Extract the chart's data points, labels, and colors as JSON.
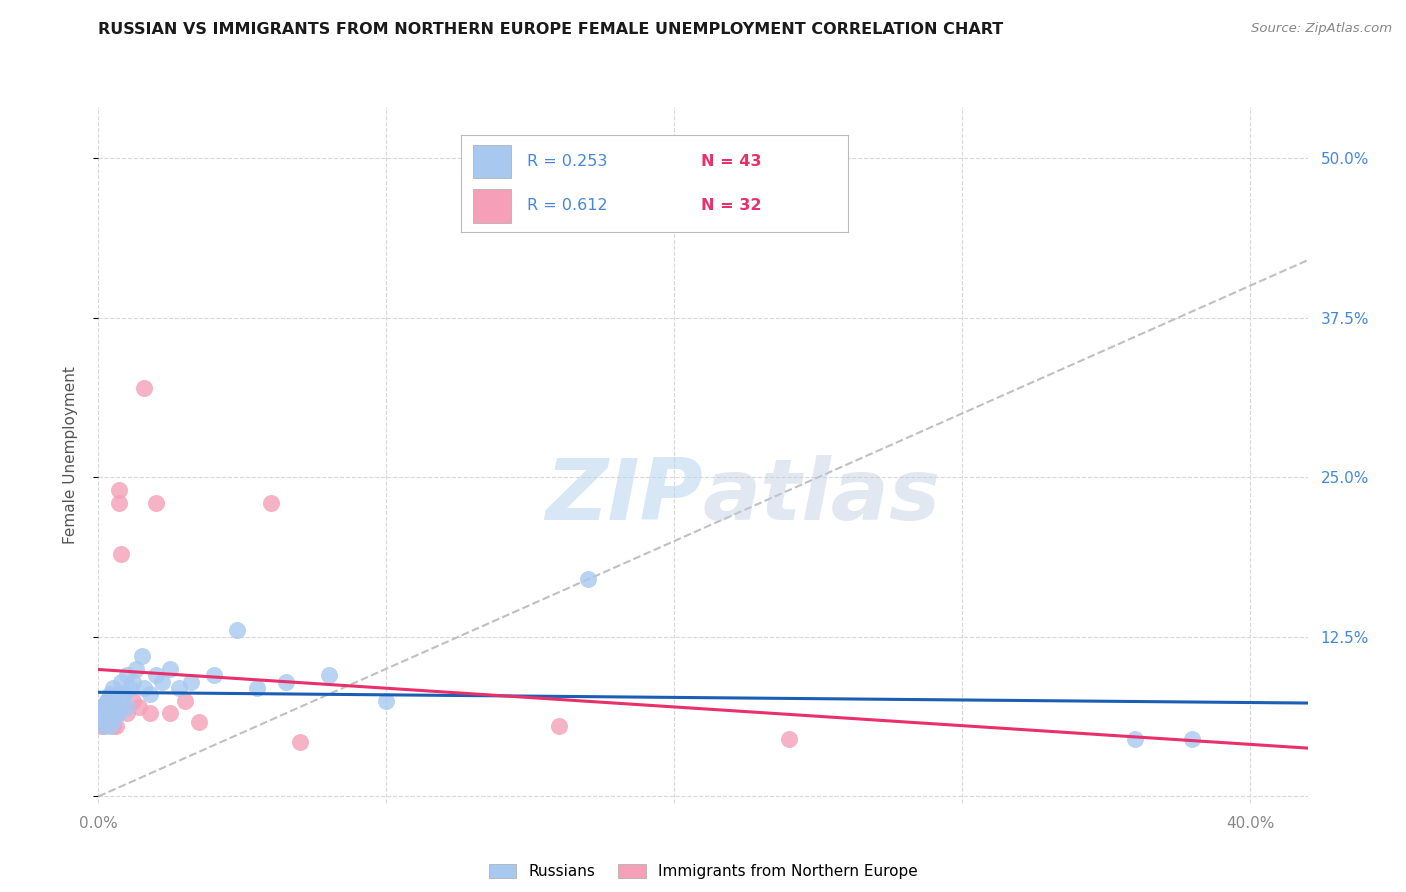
{
  "title": "RUSSIAN VS IMMIGRANTS FROM NORTHERN EUROPE FEMALE UNEMPLOYMENT CORRELATION CHART",
  "source": "Source: ZipAtlas.com",
  "ylabel": "Female Unemployment",
  "xlim": [
    0.0,
    0.42
  ],
  "ylim": [
    -0.005,
    0.54
  ],
  "yticks": [
    0.0,
    0.125,
    0.25,
    0.375,
    0.5
  ],
  "ytick_labels": [
    "",
    "12.5%",
    "25.0%",
    "37.5%",
    "50.0%"
  ],
  "xticks": [
    0.0,
    0.1,
    0.2,
    0.3,
    0.4
  ],
  "xtick_labels": [
    "0.0%",
    "",
    "",
    "",
    "40.0%"
  ],
  "background_color": "#ffffff",
  "grid_color": "#d8d8d8",
  "russian_color": "#a8c8f0",
  "immigrant_color": "#f5a0b8",
  "russian_line_color": "#1a5fb4",
  "immigrant_line_color": "#e8306a",
  "diagonal_color": "#c0c0c0",
  "legend_r1": "R = 0.253",
  "legend_n1": "N = 43",
  "legend_r2": "R = 0.612",
  "legend_n2": "N = 32",
  "r_color": "#4488dd",
  "n_color": "#e8306a",
  "watermark_zip": "ZIP",
  "watermark_atlas": "atlas",
  "russians_label": "Russians",
  "immigrants_label": "Immigrants from Northern Europe",
  "russians_x": [
    0.001,
    0.001,
    0.002,
    0.002,
    0.002,
    0.003,
    0.003,
    0.003,
    0.004,
    0.004,
    0.004,
    0.005,
    0.005,
    0.005,
    0.006,
    0.006,
    0.007,
    0.007,
    0.008,
    0.008,
    0.009,
    0.01,
    0.01,
    0.011,
    0.012,
    0.013,
    0.015,
    0.016,
    0.018,
    0.02,
    0.022,
    0.025,
    0.028,
    0.032,
    0.04,
    0.048,
    0.055,
    0.065,
    0.08,
    0.1,
    0.17,
    0.36,
    0.38
  ],
  "russians_y": [
    0.06,
    0.07,
    0.055,
    0.065,
    0.07,
    0.06,
    0.065,
    0.075,
    0.055,
    0.07,
    0.08,
    0.06,
    0.075,
    0.085,
    0.065,
    0.07,
    0.065,
    0.08,
    0.075,
    0.09,
    0.08,
    0.07,
    0.095,
    0.085,
    0.09,
    0.1,
    0.11,
    0.085,
    0.08,
    0.095,
    0.09,
    0.1,
    0.085,
    0.09,
    0.095,
    0.13,
    0.085,
    0.09,
    0.095,
    0.075,
    0.17,
    0.045,
    0.045
  ],
  "immigrants_x": [
    0.001,
    0.001,
    0.001,
    0.002,
    0.002,
    0.002,
    0.003,
    0.003,
    0.003,
    0.004,
    0.004,
    0.004,
    0.005,
    0.005,
    0.006,
    0.006,
    0.007,
    0.007,
    0.008,
    0.01,
    0.012,
    0.014,
    0.016,
    0.018,
    0.02,
    0.025,
    0.03,
    0.035,
    0.06,
    0.07,
    0.16,
    0.24
  ],
  "immigrants_y": [
    0.055,
    0.065,
    0.07,
    0.06,
    0.065,
    0.055,
    0.06,
    0.065,
    0.075,
    0.06,
    0.065,
    0.07,
    0.055,
    0.065,
    0.055,
    0.07,
    0.23,
    0.24,
    0.19,
    0.065,
    0.075,
    0.07,
    0.32,
    0.065,
    0.23,
    0.065,
    0.075,
    0.058,
    0.23,
    0.043,
    0.055,
    0.045
  ]
}
